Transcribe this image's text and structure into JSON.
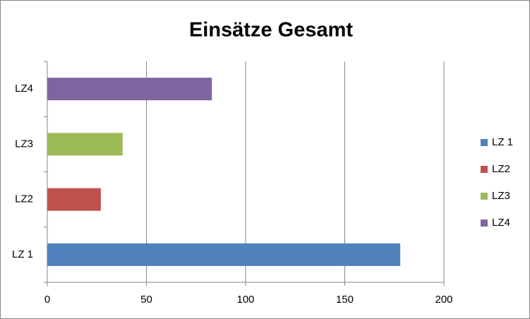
{
  "chart_data": {
    "type": "bar",
    "orientation": "horizontal",
    "title": "Einsätze Gesamt",
    "categories": [
      "LZ 1",
      "LZ2",
      "LZ3",
      "LZ4"
    ],
    "values": [
      178,
      27,
      38,
      83
    ],
    "colors": [
      "#4f81bd",
      "#c0504d",
      "#9bbb59",
      "#8064a2"
    ],
    "xlim": [
      0,
      200
    ],
    "xticks": [
      0,
      50,
      100,
      150,
      200
    ],
    "grid": true,
    "legend": "right"
  }
}
